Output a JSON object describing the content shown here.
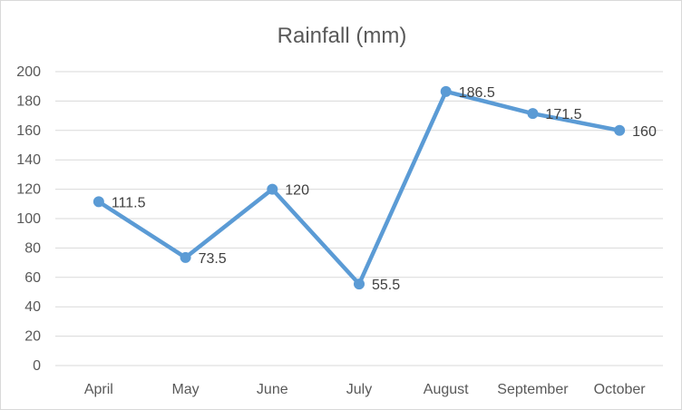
{
  "chart_data": {
    "type": "line",
    "title": "Rainfall (mm)",
    "xlabel": "",
    "ylabel": "",
    "categories": [
      "April",
      "May",
      "June",
      "July",
      "August",
      "September",
      "October"
    ],
    "series": [
      {
        "values": [
          111.5,
          73.5,
          120,
          55.5,
          186.5,
          171.5,
          160
        ]
      }
    ],
    "data_labels": [
      "111.5",
      "73.5",
      "120",
      "55.5",
      "186.5",
      "171.5",
      "160"
    ],
    "y_ticks": [
      "0",
      "20",
      "40",
      "60",
      "80",
      "100",
      "120",
      "140",
      "160",
      "180",
      "200"
    ],
    "ylim": [
      0,
      200
    ],
    "grid": true,
    "legend": "none",
    "line_color": "#5b9bd5",
    "grid_color": "#d9d9d9"
  }
}
